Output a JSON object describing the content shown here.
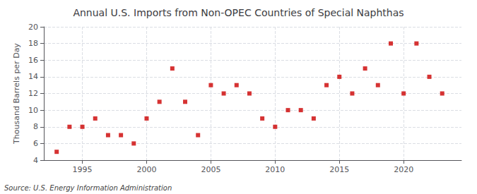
{
  "chart_data": {
    "type": "scatter",
    "title": "Annual U.S. Imports from Non-OPEC Countries of Special Naphthas",
    "ylabel": "Thousand Barrels per Day",
    "source": "Source: U.S. Energy Information Administration",
    "x": [
      1993,
      1994,
      1995,
      1996,
      1997,
      1998,
      1999,
      2000,
      2001,
      2002,
      2003,
      2004,
      2005,
      2006,
      2007,
      2008,
      2009,
      2010,
      2011,
      2012,
      2013,
      2014,
      2015,
      2016,
      2017,
      2018,
      2019,
      2020,
      2021,
      2022,
      2023
    ],
    "values": [
      5,
      8,
      8,
      9,
      7,
      7,
      6,
      9,
      11,
      15,
      11,
      7,
      13,
      12,
      13,
      12,
      9,
      8,
      10,
      10,
      9,
      13,
      14,
      12,
      15,
      13,
      18,
      12,
      18,
      14,
      12
    ],
    "color": "#cc0000",
    "marker": "square",
    "xlim": [
      1992.0,
      2024.5
    ],
    "xticks": [
      1995,
      2000,
      2005,
      2010,
      2015,
      2020
    ],
    "ylim": [
      4,
      20
    ],
    "yticks": [
      4,
      6,
      8,
      10,
      12,
      14,
      16,
      18,
      20
    ],
    "grid": true
  }
}
